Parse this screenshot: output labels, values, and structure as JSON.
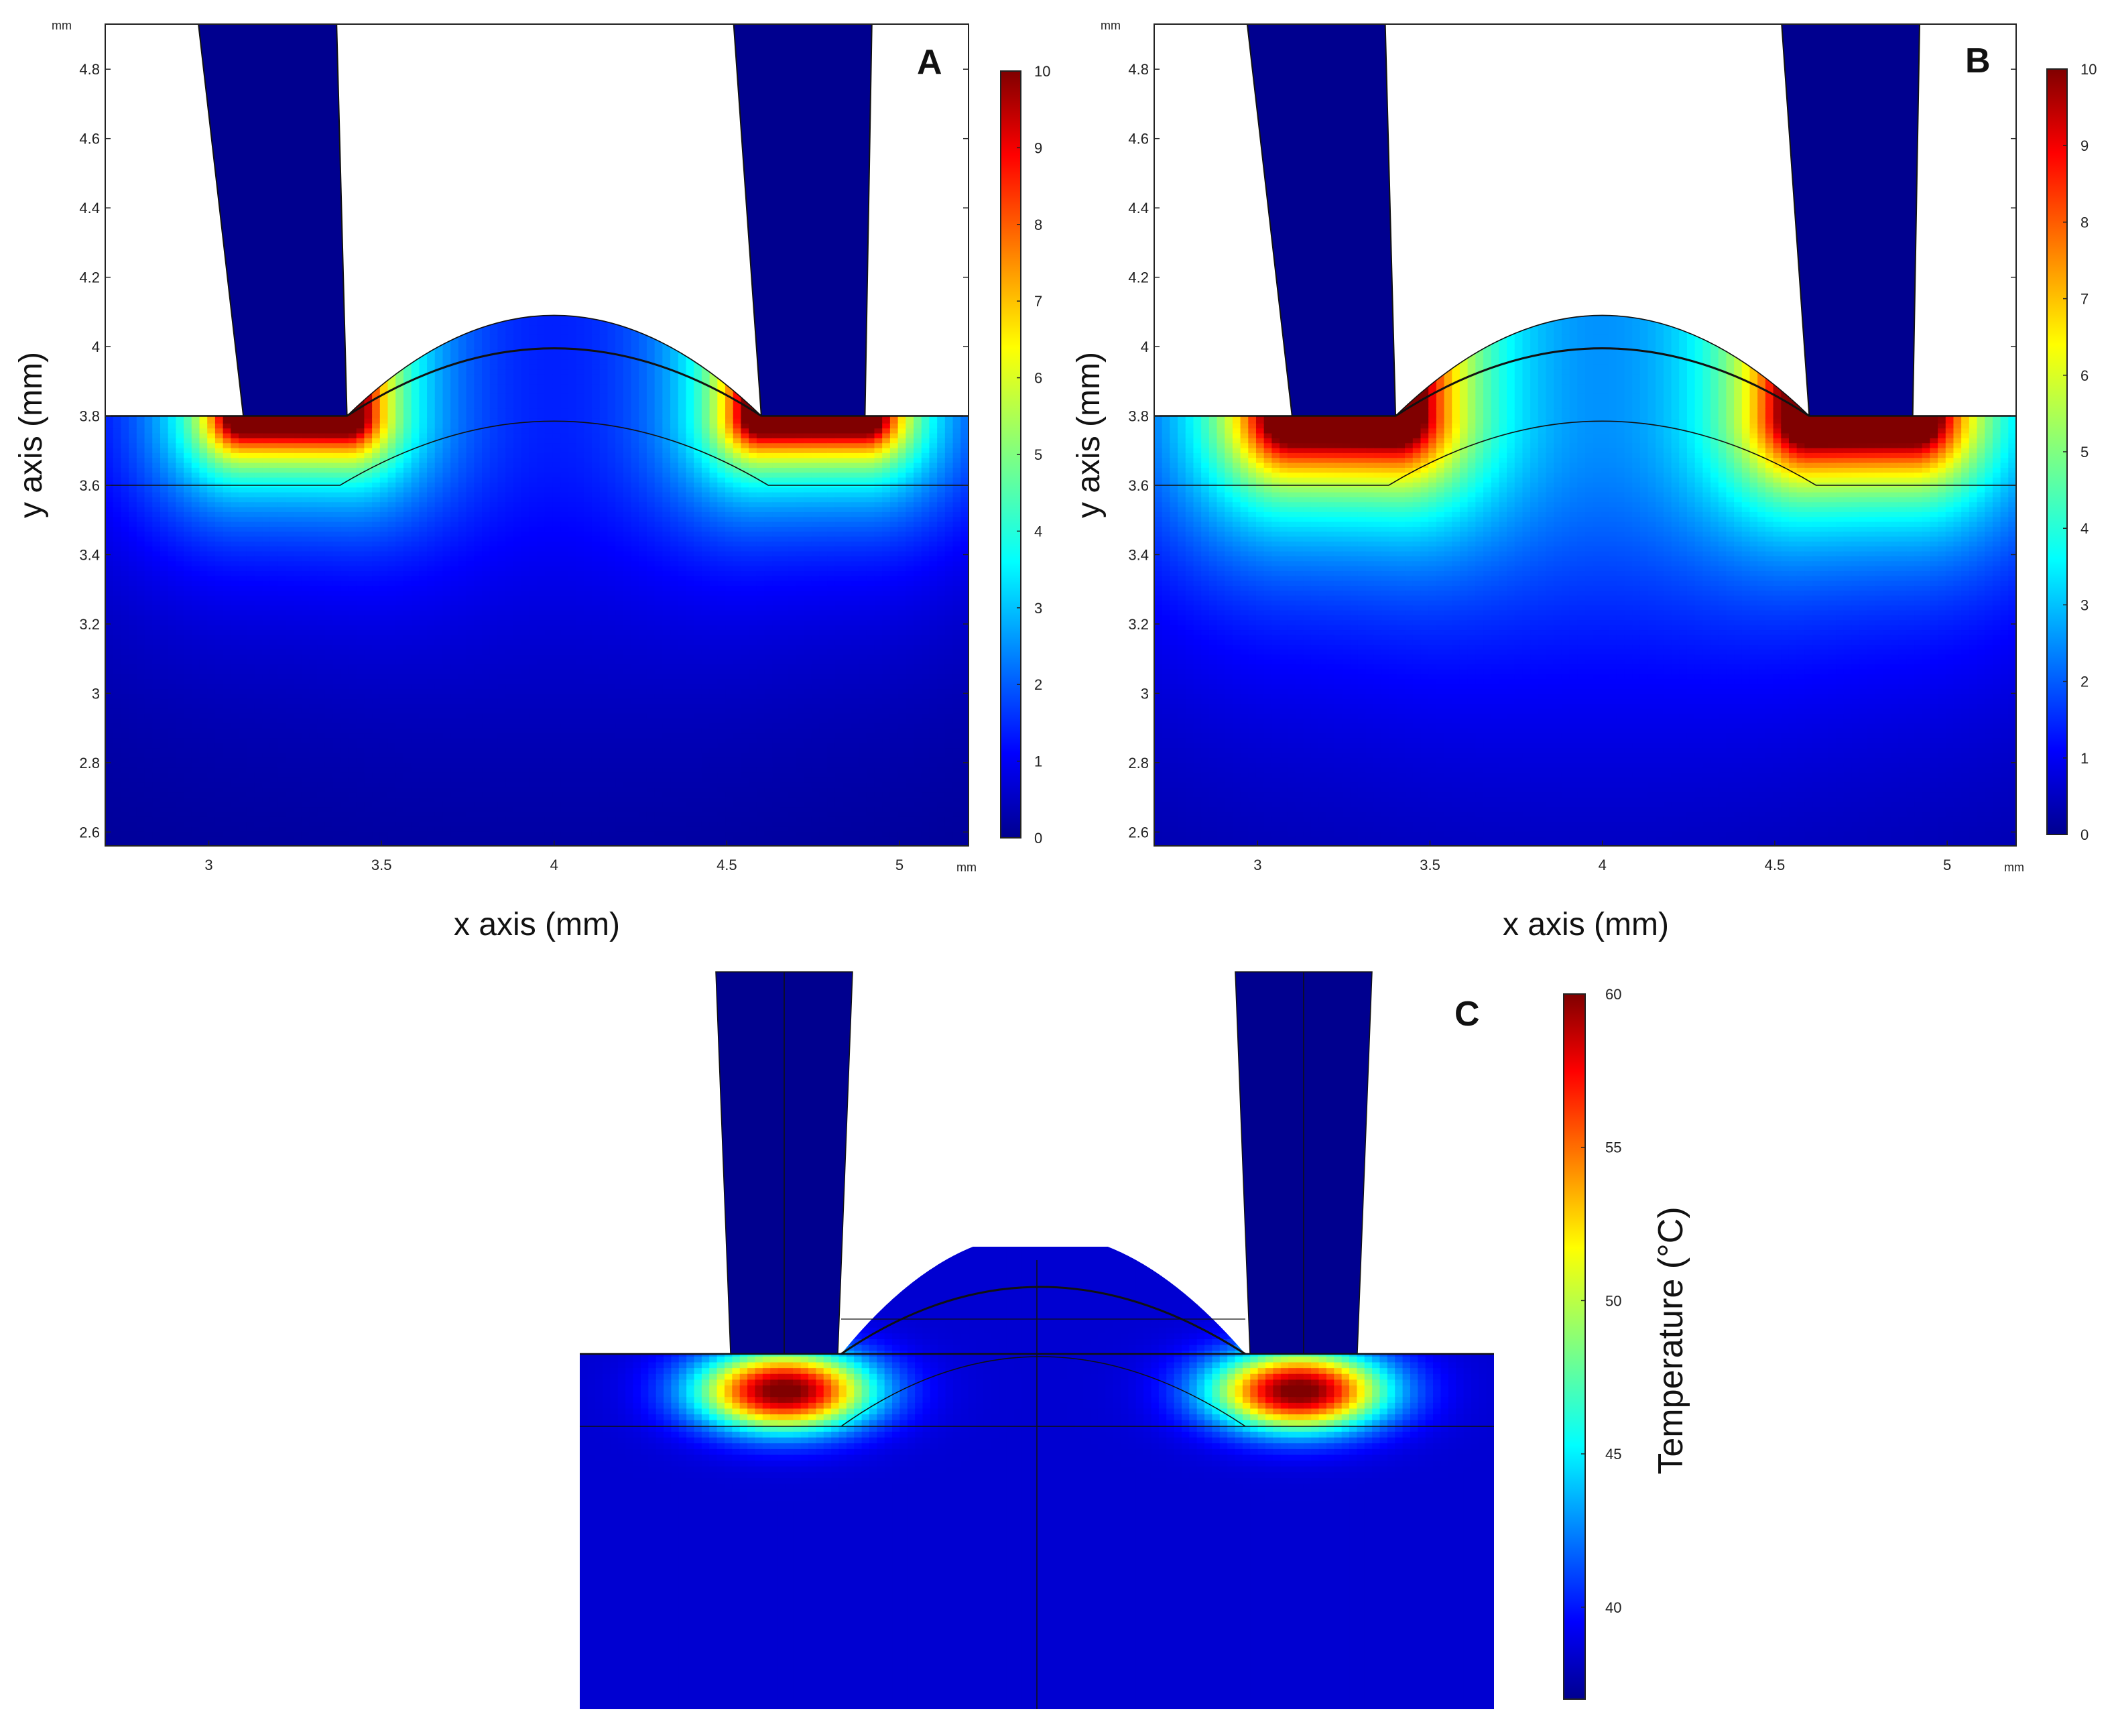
{
  "chart_data": [
    {
      "type": "heatmap",
      "panel_label": "A",
      "title": "",
      "xlabel": "x axis (mm)",
      "ylabel": "y axis (mm)",
      "x_unit": "mm",
      "y_unit": "mm",
      "xlim": [
        2.7,
        5.2
      ],
      "ylim": [
        2.56,
        4.93
      ],
      "x_ticks": [
        3,
        3.5,
        4,
        4.5,
        5
      ],
      "y_ticks": [
        2.6,
        2.8,
        3,
        3.2,
        3.4,
        3.6,
        3.8,
        4,
        4.2,
        4.4,
        4.6,
        4.8
      ],
      "colorbar": {
        "min": 0,
        "max": 10,
        "ticks": [
          0,
          1,
          2,
          3,
          4,
          5,
          6,
          7,
          8,
          9,
          10
        ],
        "colormap": "jet",
        "label": ""
      },
      "electrode_centers_x": [
        3.25,
        4.75
      ],
      "electrode_bottom_y": 3.8,
      "field_spread_mm": 0.33
    },
    {
      "type": "heatmap",
      "panel_label": "B",
      "title": "",
      "xlabel": "x axis (mm)",
      "ylabel": "y axis (mm)",
      "x_unit": "mm",
      "y_unit": "mm",
      "xlim": [
        2.7,
        5.2
      ],
      "ylim": [
        2.56,
        4.93
      ],
      "x_ticks": [
        3,
        3.5,
        4,
        4.5,
        5
      ],
      "y_ticks": [
        2.6,
        2.8,
        3,
        3.2,
        3.4,
        3.6,
        3.8,
        4,
        4.2,
        4.4,
        4.6,
        4.8
      ],
      "colorbar": {
        "min": 0,
        "max": 10,
        "ticks": [
          0,
          1,
          2,
          3,
          4,
          5,
          6,
          7,
          8,
          9,
          10
        ],
        "colormap": "jet",
        "label": ""
      },
      "electrode_centers_x": [
        3.25,
        4.75
      ],
      "electrode_bottom_y": 3.8,
      "field_spread_mm": 0.46
    },
    {
      "type": "heatmap",
      "panel_label": "C",
      "title": "",
      "xlabel": "",
      "ylabel": "",
      "colorbar": {
        "min": 37,
        "max": 60,
        "ticks": [
          40,
          45,
          50,
          55,
          60
        ],
        "colormap": "jet",
        "label": "Temperature (°C)"
      },
      "electrode_centers_x": [
        3.25,
        4.75
      ],
      "hot_zone_peak_C": 60,
      "background_C": 37
    }
  ]
}
